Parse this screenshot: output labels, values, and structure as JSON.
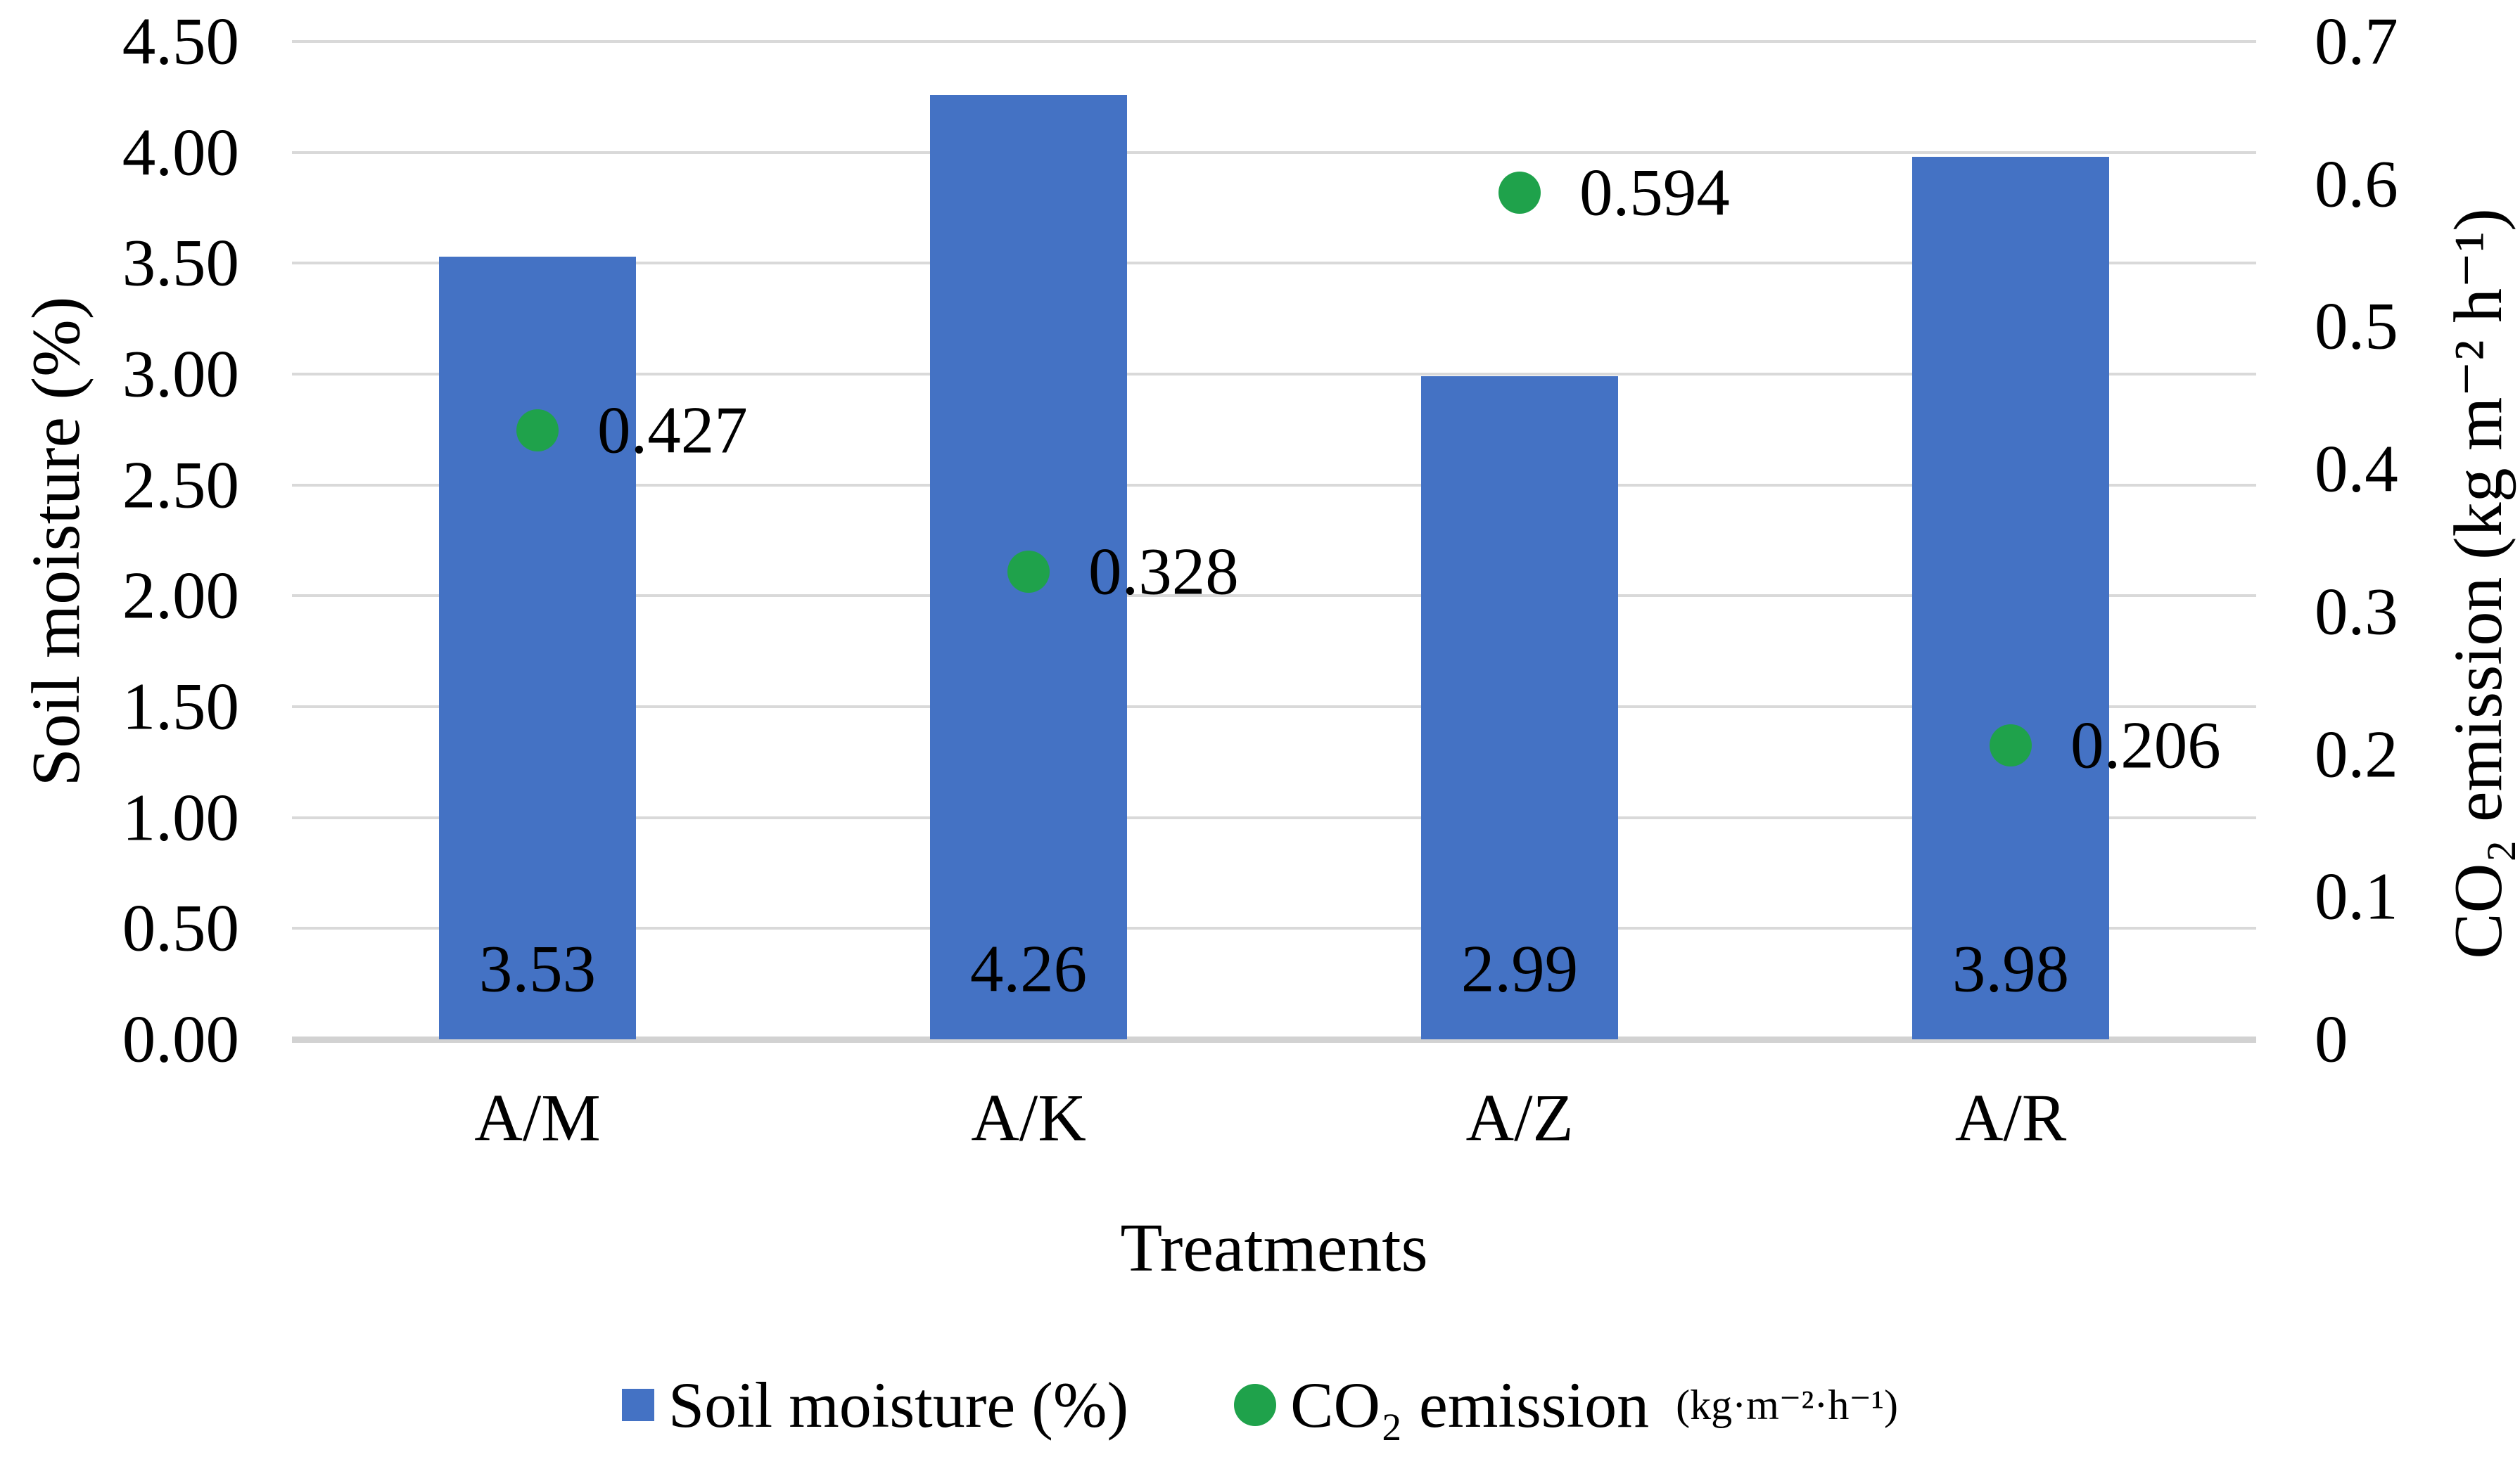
{
  "chart_data": {
    "type": "bar",
    "subtype": "dual-axis bar + scatter points",
    "categories": [
      "A/M",
      "A/K",
      "A/Z",
      "A/R"
    ],
    "series": [
      {
        "name": "Soil moisture (%)",
        "render": "bar",
        "axis": "left",
        "values": [
          3.53,
          4.26,
          2.99,
          3.98
        ],
        "data_labels": [
          "3.53",
          "4.26",
          "2.99",
          "3.98"
        ],
        "color": "#4472C4"
      },
      {
        "name": "CO₂ emission (kg·m⁻²·h⁻¹)",
        "render": "scatter",
        "axis": "right",
        "values": [
          0.427,
          0.328,
          0.594,
          0.206
        ],
        "data_labels": [
          "0.427",
          "0.328",
          "0.594",
          "0.206"
        ],
        "color": "#1FA24B"
      }
    ],
    "left_axis": {
      "title": "Soil moisture (%)",
      "min": 0,
      "max": 4.5,
      "step": 0.5,
      "ticks": [
        "4.50",
        "4.00",
        "3.50",
        "3.00",
        "2.50",
        "2.00",
        "1.50",
        "1.00",
        "0.50",
        "0.00"
      ],
      "tick_values": [
        4.5,
        4.0,
        3.5,
        3.0,
        2.5,
        2.0,
        1.5,
        1.0,
        0.5,
        0.0
      ]
    },
    "right_axis": {
      "title": "CO₂ emission (kg m⁻² h⁻¹)",
      "min": 0,
      "max": 0.7,
      "step": 0.1,
      "ticks": [
        "0.7",
        "0.6",
        "0.5",
        "0.4",
        "0.3",
        "0.2",
        "0.1",
        "0"
      ],
      "tick_values": [
        0.7,
        0.6,
        0.5,
        0.4,
        0.3,
        0.2,
        0.1,
        0.0
      ]
    },
    "x_axis": {
      "title": "Treatments"
    },
    "grid": true,
    "gridline_color": "#D9D9D9",
    "axisline_color": "#D2D2D2",
    "legend": {
      "position": "bottom",
      "items": [
        {
          "marker": "square",
          "color": "#4472C4",
          "label": "Soil moisture (%)",
          "unit": ""
        },
        {
          "marker": "circle",
          "color": "#1FA24B",
          "label": "CO₂ emission",
          "unit": "(kg·m⁻²·h⁻¹)"
        }
      ]
    }
  }
}
